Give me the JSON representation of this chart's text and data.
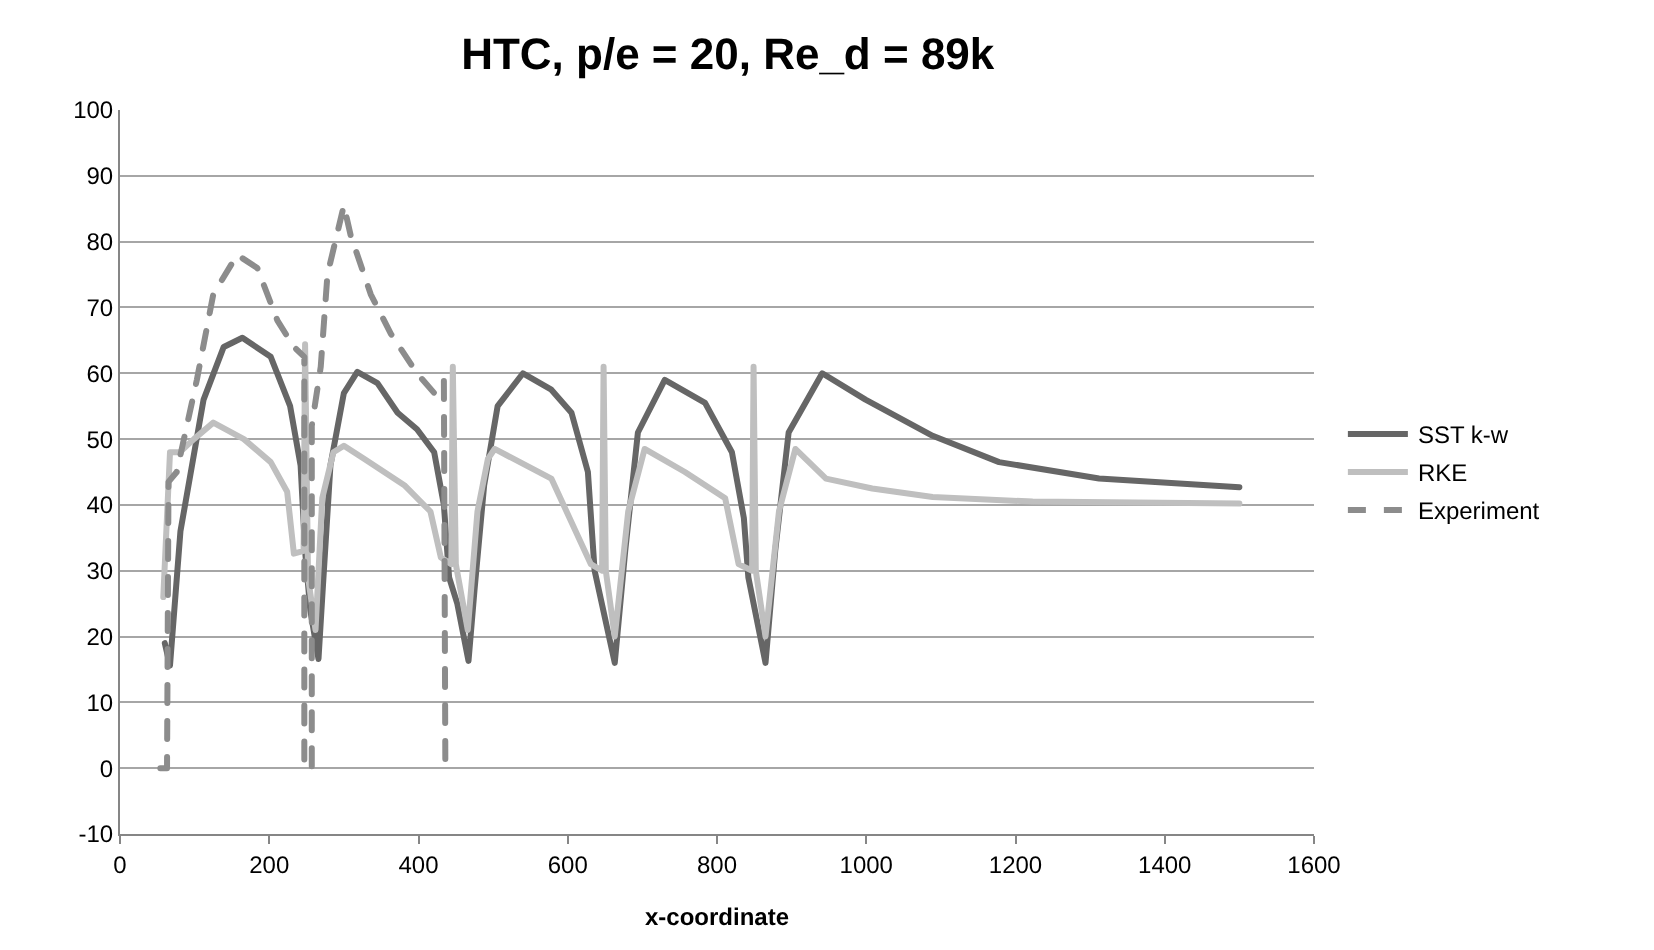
{
  "chart_data": {
    "type": "line",
    "title": "HTC, p/e = 20, Re_d = 89k",
    "xlabel": "x-coordinate",
    "xlim": [
      0,
      1600
    ],
    "xticks": [
      0,
      200,
      400,
      600,
      800,
      1000,
      1200,
      1400,
      1600
    ],
    "ylim": [
      -10,
      100
    ],
    "yticks": [
      -10,
      0,
      10,
      20,
      30,
      40,
      50,
      60,
      70,
      80,
      90,
      100
    ],
    "grid": "y",
    "legend": "right",
    "line_style": "solid",
    "marker": "none",
    "series": [
      {
        "name": "SST k-w",
        "color": "#666666",
        "x": [
          60,
          67,
          81,
          112,
          139,
          164,
          202,
          228,
          242,
          248,
          255,
          266,
          271,
          282,
          300,
          318,
          345,
          372,
          398,
          421,
          434,
          441,
          452,
          467,
          475,
          488,
          506,
          540,
          578,
          605,
          627,
          636,
          663,
          677,
          694,
          730,
          784,
          820,
          836,
          842,
          865,
          878,
          896,
          941,
          999,
          1089,
          1178,
          1312,
          1500
        ],
        "values": [
          19,
          15.6,
          36,
          56,
          64,
          65.4,
          62.5,
          55,
          46,
          33,
          24,
          16.6,
          26,
          46,
          57,
          60.2,
          58.5,
          54,
          51.5,
          48,
          40,
          29,
          25,
          16.3,
          27,
          43,
          55,
          60,
          57.5,
          54,
          45,
          30,
          16,
          33,
          51,
          59,
          55.5,
          48,
          38,
          29,
          16,
          33,
          51,
          60,
          56,
          50.5,
          46.5,
          44,
          42.7
        ]
      },
      {
        "name": "RKE",
        "color": "#bfbfbf",
        "x": [
          58,
          67,
          80,
          99,
          125,
          166,
          202,
          224,
          233,
          246,
          248,
          252,
          262,
          271,
          286,
          300,
          327,
          381,
          416,
          430,
          444,
          446,
          450,
          466,
          479,
          493,
          502,
          578,
          631,
          646,
          648,
          651,
          663,
          681,
          703,
          757,
          811,
          829,
          847,
          849,
          852,
          865,
          883,
          905,
          946,
          1008,
          1089,
          1223,
          1500
        ],
        "values": [
          26,
          48,
          48,
          50,
          52.5,
          50,
          46.5,
          42,
          32.6,
          33,
          64.4,
          29,
          21,
          41,
          48,
          49,
          47,
          43,
          39,
          32,
          31,
          61,
          31,
          21,
          39,
          47,
          48.5,
          44,
          31,
          30,
          61,
          30,
          20,
          39,
          48.5,
          45,
          41,
          31,
          30,
          61,
          30,
          20,
          39,
          48.5,
          44,
          42.5,
          41.2,
          40.5,
          40.2
        ]
      },
      {
        "name": "Experiment",
        "color": "#8c8c8c",
        "line_style": "dashed",
        "x": [
          54,
          63,
          65,
          76,
          103,
          125,
          157,
          184,
          211,
          233,
          247,
          247,
          257,
          257,
          269,
          278,
          300,
          309,
          336,
          363,
          398,
          421,
          434,
          436,
          445
        ],
        "values": [
          0,
          0,
          43.5,
          45,
          59,
          72,
          78,
          76,
          68,
          64,
          62.5,
          0,
          0,
          52,
          61,
          75,
          85.5,
          81,
          72,
          66,
          60,
          57,
          59,
          0,
          0
        ]
      }
    ]
  }
}
